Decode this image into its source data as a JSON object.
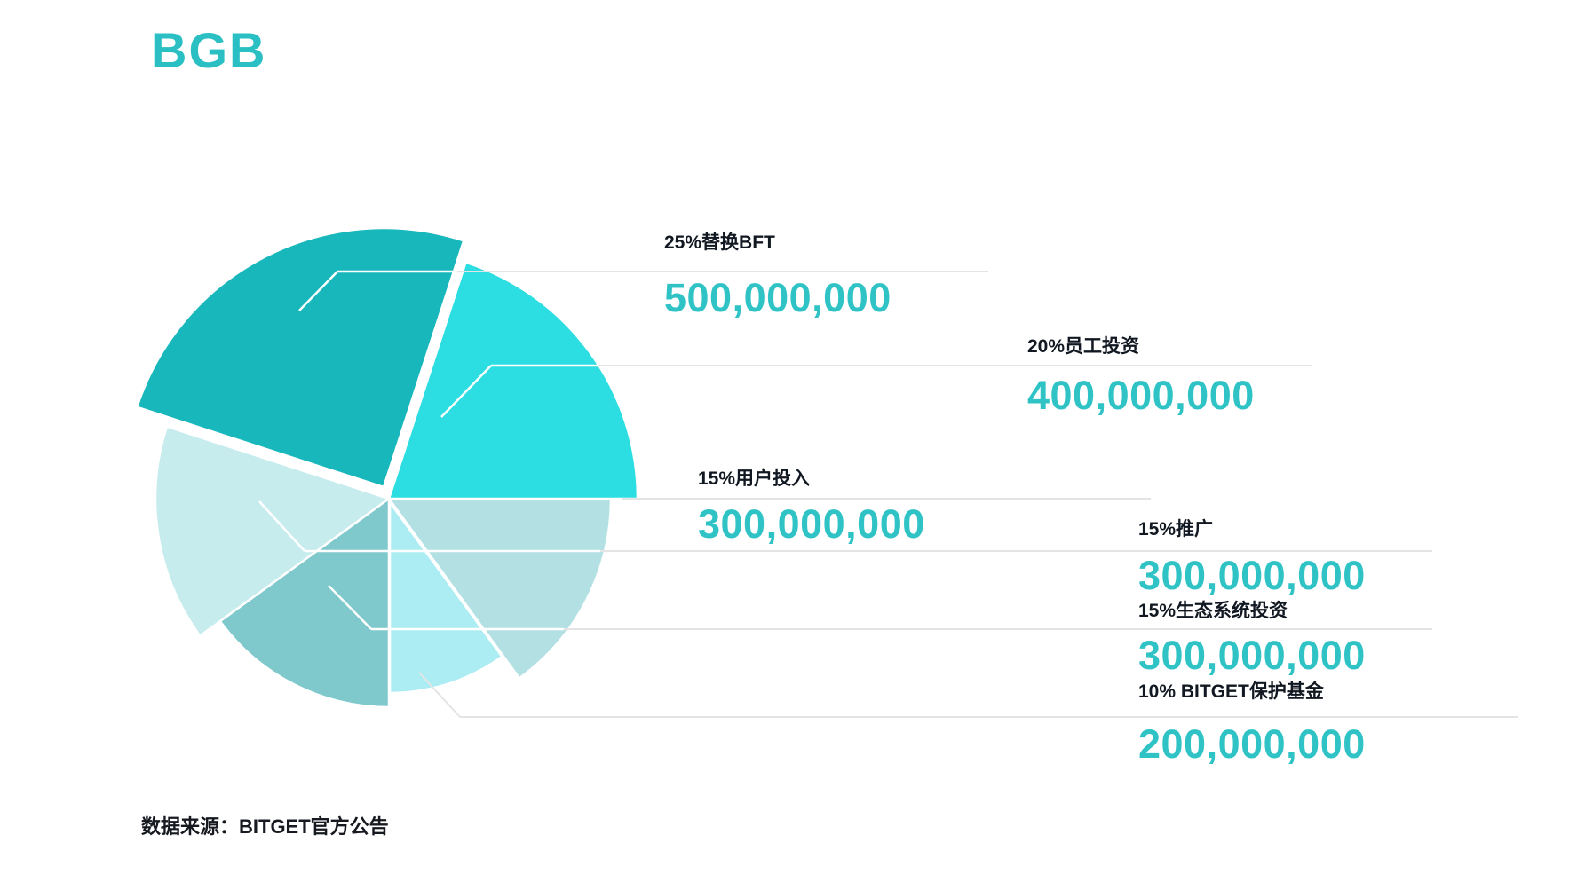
{
  "page": {
    "title": "BGB",
    "source": "数据来源：BITGET官方公告"
  },
  "colors": {
    "title_teal": "#2abfc3",
    "value_teal": "#2fc3c6",
    "label_text": "#111821",
    "leader_gray": "#e3e5e5",
    "leader_white": "#ffffff",
    "background": "#ffffff"
  },
  "chart_data": {
    "type": "pie",
    "title": "BGB",
    "categories": [
      "替换BFT",
      "员工投资",
      "用户投入",
      "推广",
      "生态系统投资",
      "BITGET保护基金"
    ],
    "percents": [
      25,
      20,
      15,
      15,
      15,
      10
    ],
    "values": [
      500000000,
      400000000,
      300000000,
      300000000,
      300000000,
      200000000
    ],
    "value_labels": [
      "500,000,000",
      "400,000,000",
      "300,000,000",
      "300,000,000",
      "300,000,000",
      "200,000,000"
    ],
    "slice_colors": [
      "#18b7bc",
      "#2cdde2",
      "#b2e0e3",
      "#c6ecee",
      "#7fc9cd",
      "#abedf2"
    ],
    "legend_position": "right-callouts",
    "grid": false,
    "source": "数据来源：BITGET官方公告"
  },
  "labels": [
    {
      "name": "25%替换BFT",
      "value": "500,000,000"
    },
    {
      "name": "20%员工投资",
      "value": "400,000,000"
    },
    {
      "name": "15%用户投入",
      "value": "300,000,000"
    },
    {
      "name": "15%推广",
      "value": "300,000,000"
    },
    {
      "name": "15%生态系统投资",
      "value": "300,000,000"
    },
    {
      "name": "10% BITGET保护基金",
      "value": "200,000,000"
    }
  ]
}
